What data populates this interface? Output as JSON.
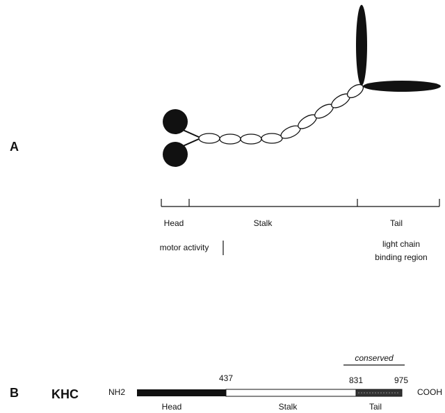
{
  "panel_a": {
    "label": "A",
    "domains": [
      "Head",
      "Stalk",
      "Tail"
    ],
    "motor_activity": "motor activity",
    "light_chain_region": [
      "light chain",
      "binding region"
    ]
  },
  "panel_b": {
    "label": "B",
    "protein": "KHC",
    "n_terminus": "NH2",
    "c_terminus": "COOH",
    "conserved": "conserved",
    "positions": [
      437,
      831,
      975
    ],
    "domains": [
      "Head",
      "Stalk",
      "Tail"
    ]
  }
}
